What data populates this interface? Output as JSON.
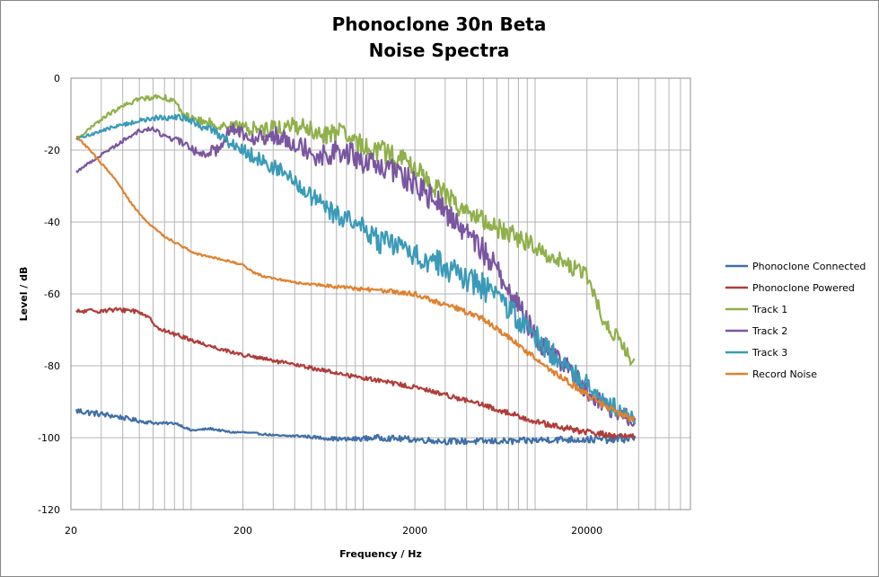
{
  "chart_data": {
    "type": "line",
    "title": [
      "Phonoclone 30n Beta",
      "Noise Spectra"
    ],
    "xlabel": "Frequency / Hz",
    "ylabel": "Level / dB",
    "x_scale": "log",
    "xlim": [
      20,
      80000
    ],
    "ylim": [
      -120,
      0
    ],
    "x_tick_labels": [
      {
        "value": 20,
        "label": "20"
      },
      {
        "value": 200,
        "label": "200"
      },
      {
        "value": 2000,
        "label": "2000"
      },
      {
        "value": 20000,
        "label": "20000"
      }
    ],
    "y_tick_labels": [
      {
        "value": 0,
        "label": "0"
      },
      {
        "value": -20,
        "label": "-20"
      },
      {
        "value": -40,
        "label": "-40"
      },
      {
        "value": -60,
        "label": "-60"
      },
      {
        "value": -80,
        "label": "-80"
      },
      {
        "value": -100,
        "label": "-100"
      },
      {
        "value": -120,
        "label": "-120"
      }
    ],
    "grid": true,
    "legend_position": "right",
    "series": [
      {
        "name": "Phonoclone Connected",
        "color": "#3f6fa6",
        "jitter": [
          1.0,
          0.3,
          0.25,
          0.8,
          0.9,
          1.0,
          1.2
        ],
        "x": [
          21.5,
          36,
          52,
          65,
          82,
          100,
          130,
          170,
          200,
          260,
          330,
          430,
          550,
          800,
          1200,
          2000,
          3000,
          5000,
          8000,
          12000,
          20000,
          30000,
          38000
        ],
        "y": [
          -92.5,
          -94,
          -95.5,
          -96,
          -96,
          -98,
          -97.5,
          -98.5,
          -98.5,
          -99,
          -99.5,
          -99.5,
          -100,
          -100.5,
          -100,
          -100.5,
          -101,
          -101,
          -101,
          -100.5,
          -100.5,
          -100.5,
          -100
        ]
      },
      {
        "name": "Phonoclone Powered",
        "color": "#b03c38",
        "jitter": [
          0.7,
          0.5,
          0.6,
          0.8,
          1.0
        ],
        "x": [
          21.5,
          33,
          45,
          53,
          67,
          90,
          110,
          140,
          200,
          260,
          330,
          430,
          550,
          700,
          900,
          1200,
          2000,
          3000,
          5000,
          8000,
          12000,
          20000,
          30000,
          38000
        ],
        "y": [
          -65,
          -64.5,
          -64.5,
          -65.5,
          -70,
          -72,
          -73.5,
          -75,
          -77,
          -78,
          -79,
          -80,
          -81,
          -82,
          -83,
          -84,
          -86,
          -88,
          -91,
          -94,
          -96.5,
          -98.5,
          -99.5,
          -100
        ]
      },
      {
        "name": "Track 1",
        "color": "#8fb04a",
        "jitter": [
          0.4,
          0.8,
          2.5,
          3.2,
          2.8,
          2.2,
          1.5
        ],
        "x": [
          21.5,
          33,
          48,
          65,
          78,
          90,
          110,
          150,
          200,
          260,
          330,
          430,
          550,
          700,
          900,
          1200,
          1600,
          2000,
          2600,
          3500,
          5000,
          7000,
          10000,
          13000,
          17000,
          20000,
          22000,
          25000,
          30000,
          38000
        ],
        "y": [
          -17,
          -10,
          -6,
          -5,
          -6,
          -10,
          -12,
          -13,
          -14,
          -14,
          -14,
          -13,
          -16,
          -15,
          -18,
          -20,
          -22,
          -25,
          -30,
          -35,
          -40,
          -43,
          -47,
          -50,
          -53,
          -55,
          -60,
          -68,
          -72,
          -80
        ]
      },
      {
        "name": "Track 2",
        "color": "#7a55a0",
        "jitter": [
          0.3,
          0.8,
          2.8,
          3.8,
          3.5,
          2.8,
          1.5
        ],
        "x": [
          21.5,
          33,
          48,
          58,
          70,
          90,
          110,
          140,
          170,
          200,
          260,
          330,
          430,
          550,
          700,
          900,
          1200,
          1600,
          2000,
          2600,
          3500,
          5000,
          7000,
          10000,
          15000,
          20000,
          25000,
          30000,
          38000
        ],
        "y": [
          -26,
          -20,
          -15,
          -14,
          -16,
          -18,
          -21,
          -20,
          -14,
          -15,
          -17,
          -16,
          -18,
          -22,
          -20,
          -22,
          -25,
          -26,
          -30,
          -34,
          -40,
          -48,
          -58,
          -72,
          -80,
          -87,
          -91,
          -93,
          -95
        ]
      },
      {
        "name": "Track 3",
        "color": "#3a9ab8",
        "jitter": [
          0.3,
          0.8,
          2.5,
          3.5,
          3.8,
          3.0,
          1.5
        ],
        "x": [
          21.5,
          33,
          48,
          65,
          78,
          90,
          110,
          140,
          170,
          200,
          260,
          330,
          430,
          550,
          700,
          900,
          1200,
          1600,
          2000,
          2600,
          3500,
          5000,
          7000,
          10000,
          15000,
          20000,
          25000,
          30000,
          38000
        ],
        "y": [
          -17,
          -14,
          -12,
          -11,
          -11,
          -11,
          -13,
          -15,
          -18,
          -20,
          -23,
          -26,
          -30,
          -35,
          -38,
          -40,
          -45,
          -47,
          -49,
          -51,
          -54,
          -58,
          -64,
          -72,
          -80,
          -85,
          -89,
          -92,
          -95
        ]
      },
      {
        "name": "Record Noise",
        "color": "#e0812f",
        "jitter": [
          0.3,
          0.3,
          0.3,
          0.6,
          0.8,
          1.0,
          1.0
        ],
        "x": [
          21.5,
          28,
          36,
          45,
          55,
          70,
          90,
          110,
          140,
          170,
          200,
          230,
          260,
          330,
          430,
          550,
          700,
          900,
          1200,
          1600,
          2000,
          2600,
          3500,
          5000,
          7000,
          10000,
          15000,
          20000,
          25000,
          30000,
          38000
        ],
        "y": [
          -16,
          -22,
          -28,
          -35,
          -40,
          -44,
          -47,
          -49,
          -50,
          -51,
          -52,
          -54,
          -55,
          -56,
          -57,
          -57.5,
          -58,
          -58.5,
          -59,
          -59.5,
          -60,
          -62,
          -64,
          -67,
          -72,
          -78,
          -84,
          -88,
          -91,
          -93,
          -95
        ]
      }
    ]
  }
}
